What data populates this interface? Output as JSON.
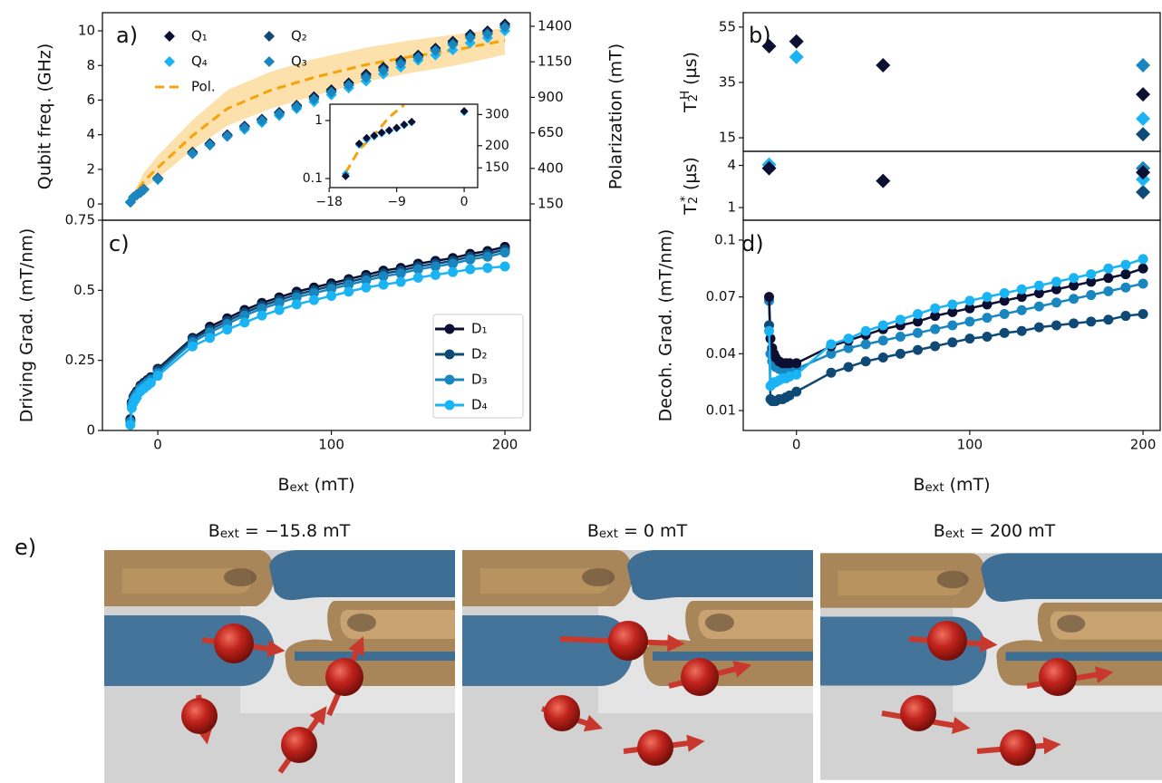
{
  "chart_data": [
    {
      "type": "scatter",
      "panel_label": "a)",
      "ylabel": "Qubit freq. (GHz)",
      "y2label": "Polarization (mT)",
      "xlim": [
        -31.9,
        214.6
      ],
      "ylim": [
        -0.94,
        11.05
      ],
      "yticks": [
        0,
        2,
        4,
        6,
        8,
        10
      ],
      "y2lim": [
        35.2,
        1495.7
      ],
      "y2ticks": [
        150,
        400,
        650,
        900,
        1150,
        1400
      ],
      "legend": "upper left",
      "legend_columns": 2,
      "x": [
        -15.8,
        -14,
        -12,
        -10,
        -8,
        0,
        20,
        30,
        40,
        50,
        60,
        70,
        80,
        90,
        100,
        110,
        120,
        130,
        140,
        150,
        160,
        170,
        180,
        190,
        200
      ],
      "series": [
        {
          "name": "Q₁",
          "color": "#0b1033",
          "marker": "diamond",
          "values": [
            0.11,
            0.4,
            0.55,
            0.68,
            0.85,
            1.5,
            3.0,
            3.5,
            4.0,
            4.5,
            4.9,
            5.3,
            5.7,
            6.2,
            6.6,
            7.0,
            7.5,
            7.9,
            8.3,
            8.6,
            9.0,
            9.4,
            9.8,
            10.0,
            10.4
          ]
        },
        {
          "name": "Q₂",
          "color": "#0e4a75",
          "marker": "diamond",
          "values": [
            0.1,
            0.38,
            0.53,
            0.66,
            0.83,
            1.48,
            2.95,
            3.45,
            3.95,
            4.45,
            4.85,
            5.25,
            5.65,
            6.1,
            6.5,
            6.9,
            7.4,
            7.8,
            8.2,
            8.5,
            8.9,
            9.3,
            9.7,
            9.9,
            10.3
          ]
        },
        {
          "name": "Q₄",
          "color": "#1ab4f5",
          "marker": "diamond",
          "values": [
            0.12,
            0.38,
            0.53,
            0.66,
            0.83,
            1.4,
            2.9,
            3.4,
            3.9,
            4.3,
            4.7,
            5.1,
            5.5,
            5.9,
            6.3,
            6.7,
            7.1,
            7.5,
            7.9,
            8.3,
            8.6,
            8.9,
            9.3,
            9.6,
            10.0
          ]
        },
        {
          "name": "Q₃",
          "color": "#1a86c0",
          "marker": "diamond",
          "values": [
            0.1,
            0.37,
            0.52,
            0.65,
            0.82,
            1.45,
            2.9,
            3.4,
            3.9,
            4.4,
            4.8,
            5.2,
            5.6,
            6.05,
            6.45,
            6.85,
            7.3,
            7.7,
            8.1,
            8.45,
            8.85,
            9.2,
            9.6,
            9.8,
            10.2
          ]
        },
        {
          "name": "Pol.",
          "type": "line",
          "axis": "y2",
          "color": "#f5a30a",
          "linestyle": "dashed",
          "band_color": "#fbd48a",
          "x": [
            -15.8,
            -8,
            0,
            20,
            40,
            65,
            90,
            120,
            145,
            170,
            200
          ],
          "values": [
            170,
            310,
            405,
            630,
            820,
            950,
            1040,
            1130,
            1185,
            1230,
            1300
          ],
          "upper": [
            190,
            370,
            490,
            740,
            950,
            1080,
            1170,
            1250,
            1300,
            1340,
            1390
          ],
          "lower": [
            150,
            260,
            330,
            530,
            700,
            820,
            910,
            1010,
            1070,
            1120,
            1200
          ]
        }
      ]
    },
    {
      "type": "scatter",
      "xlim": [
        -17.9,
        1.8
      ],
      "xticks": [
        {
          "value": -18,
          "label": "−18"
        },
        {
          "value": -9,
          "label": "−9"
        },
        0
      ],
      "yscale": "log",
      "ylim": [
        0.0698,
        1.91
      ],
      "yticks": [
        0.1,
        1
      ],
      "y2scale": "log",
      "y2lim": [
        116,
        343
      ],
      "y2ticks": [
        150,
        200,
        300
      ],
      "x": [
        -15.8,
        -14,
        -13,
        -12,
        -11,
        -10,
        -9,
        -8,
        -7,
        0
      ],
      "series": [
        {
          "color": "#1ab4f5",
          "marker": "diamond",
          "values": [
            0.12,
            0.38,
            0.47,
            0.53,
            0.6,
            0.66,
            0.73,
            0.83,
            0.93,
            1.4
          ]
        },
        {
          "color": "#0b1033",
          "marker": "diamond",
          "values": [
            0.11,
            0.4,
            0.5,
            0.55,
            0.62,
            0.68,
            0.75,
            0.85,
            0.95,
            1.45
          ]
        },
        {
          "type": "line",
          "axis": "y2",
          "color": "#f5a30a",
          "linestyle": "dashed",
          "x": [
            -15.8,
            -14,
            -12,
            -10,
            -8
          ],
          "values": [
            141,
            190,
            230,
            290,
            340
          ]
        }
      ]
    },
    {
      "type": "scatter",
      "panel_label": "b)",
      "ylabel": {
        "base": "T",
        "sub": "2",
        "sup": "H",
        "rest": " (µs)"
      },
      "xlim": [
        -30.7,
        209.9
      ],
      "ylim": [
        10.1,
        60.2
      ],
      "yticks": [
        15,
        35,
        55
      ],
      "x": [
        -15.8,
        0,
        50,
        200
      ],
      "series": [
        {
          "color": "#0e4a75",
          "marker": "diamond",
          "values": [
            null,
            null,
            null,
            16.3
          ]
        },
        {
          "color": "#1a86c0",
          "marker": "diamond",
          "values": [
            null,
            null,
            null,
            41.2
          ]
        },
        {
          "color": "#1ab4f5",
          "marker": "diamond",
          "values": [
            null,
            44.2,
            null,
            21.9
          ]
        },
        {
          "color": "#0b1033",
          "marker": "diamond",
          "values": [
            48.1,
            49.8,
            41.2,
            30.7
          ]
        }
      ]
    },
    {
      "type": "scatter",
      "ylabel": {
        "base": "T",
        "sub": "2",
        "sup": "*",
        "rest": " (µs)"
      },
      "xlim": [
        -30.7,
        209.9
      ],
      "ylim": [
        0.1,
        5.0
      ],
      "yticks": [
        1,
        4
      ],
      "x": [
        -15.8,
        0,
        50,
        200
      ],
      "series": [
        {
          "color": "#0e4a75",
          "marker": "diamond",
          "values": [
            null,
            null,
            null,
            2.1
          ]
        },
        {
          "color": "#1a86c0",
          "marker": "diamond",
          "values": [
            null,
            null,
            null,
            3.8
          ]
        },
        {
          "color": "#1ab4f5",
          "marker": "diamond",
          "values": [
            4.06,
            null,
            null,
            3.0
          ]
        },
        {
          "color": "#0b1033",
          "marker": "diamond",
          "values": [
            3.8,
            null,
            2.9,
            3.5
          ]
        }
      ]
    },
    {
      "type": "line",
      "panel_label": "c)",
      "ylabel": "Driving Grad. (mT/nm)",
      "xlabel": {
        "base": "B",
        "sub": "ext",
        "rest": " (mT)"
      },
      "xlim": [
        -31.9,
        214.6
      ],
      "xticks": [
        0,
        100,
        200
      ],
      "ylim": [
        0,
        0.75
      ],
      "yticks": [
        0,
        0.25,
        0.5,
        0.75
      ],
      "legend": "lower right",
      "legend_frame": true,
      "x": [
        -15.8,
        -15,
        -14,
        -13,
        -12,
        -10,
        -8,
        -6,
        -4,
        0,
        20,
        30,
        40,
        50,
        60,
        70,
        80,
        90,
        100,
        110,
        120,
        130,
        140,
        150,
        160,
        170,
        180,
        190,
        200
      ],
      "series": [
        {
          "name": "D₁",
          "color": "#0b1033",
          "marker": "circle",
          "values": [
            0.04,
            0.1,
            0.12,
            0.13,
            0.14,
            0.16,
            0.17,
            0.18,
            0.19,
            0.22,
            0.33,
            0.37,
            0.4,
            0.43,
            0.455,
            0.475,
            0.495,
            0.51,
            0.525,
            0.54,
            0.555,
            0.57,
            0.58,
            0.595,
            0.605,
            0.615,
            0.63,
            0.64,
            0.655
          ]
        },
        {
          "name": "D₂",
          "color": "#0e4a75",
          "marker": "circle",
          "values": [
            0.035,
            0.095,
            0.115,
            0.125,
            0.135,
            0.155,
            0.165,
            0.175,
            0.185,
            0.215,
            0.325,
            0.36,
            0.39,
            0.42,
            0.445,
            0.465,
            0.485,
            0.5,
            0.515,
            0.53,
            0.545,
            0.56,
            0.57,
            0.585,
            0.595,
            0.605,
            0.62,
            0.63,
            0.645
          ]
        },
        {
          "name": "D₃",
          "color": "#1a86c0",
          "marker": "circle",
          "values": [
            0.03,
            0.09,
            0.11,
            0.12,
            0.13,
            0.15,
            0.16,
            0.17,
            0.18,
            0.205,
            0.315,
            0.35,
            0.38,
            0.41,
            0.435,
            0.455,
            0.475,
            0.49,
            0.505,
            0.52,
            0.535,
            0.55,
            0.56,
            0.575,
            0.585,
            0.595,
            0.61,
            0.62,
            0.635
          ]
        },
        {
          "name": "D₄",
          "color": "#1ab4f5",
          "marker": "circle",
          "values": [
            0.02,
            0.08,
            0.1,
            0.11,
            0.12,
            0.14,
            0.15,
            0.16,
            0.17,
            0.195,
            0.3,
            0.33,
            0.36,
            0.385,
            0.41,
            0.43,
            0.45,
            0.465,
            0.48,
            0.495,
            0.51,
            0.52,
            0.53,
            0.545,
            0.555,
            0.565,
            0.575,
            0.58,
            0.585
          ]
        }
      ]
    },
    {
      "type": "line",
      "panel_label": "d)",
      "ylabel": "Decoh. Grad. (mT/nm)",
      "xlabel": {
        "base": "B",
        "sub": "ext",
        "rest": " (mT)"
      },
      "xlim": [
        -30.7,
        209.9
      ],
      "xticks": [
        0,
        100,
        200
      ],
      "ylim": [
        -0.0005,
        0.1105
      ],
      "yticks": [
        0.01,
        0.04,
        0.07,
        0.1
      ],
      "x": [
        -15.8,
        -15,
        -14,
        -13,
        -12,
        -10,
        -8,
        -6,
        -4,
        0,
        20,
        30,
        40,
        50,
        60,
        70,
        80,
        90,
        100,
        110,
        120,
        130,
        140,
        150,
        160,
        170,
        180,
        190,
        200
      ],
      "series": [
        {
          "color": "#1a86c0",
          "marker": "circle",
          "values": [
            0.068,
            0.04,
            0.036,
            0.034,
            0.033,
            0.032,
            0.031,
            0.031,
            0.031,
            0.032,
            0.04,
            0.043,
            0.045,
            0.047,
            0.049,
            0.051,
            0.053,
            0.055,
            0.057,
            0.059,
            0.061,
            0.063,
            0.065,
            0.067,
            0.069,
            0.071,
            0.073,
            0.075,
            0.077
          ]
        },
        {
          "color": "#0b1033",
          "marker": "circle",
          "values": [
            0.07,
            0.048,
            0.043,
            0.04,
            0.038,
            0.036,
            0.035,
            0.035,
            0.035,
            0.035,
            0.044,
            0.047,
            0.05,
            0.053,
            0.055,
            0.057,
            0.06,
            0.062,
            0.064,
            0.066,
            0.068,
            0.07,
            0.072,
            0.074,
            0.076,
            0.078,
            0.08,
            0.082,
            0.085
          ]
        },
        {
          "color": "#0e4a75",
          "marker": "circle",
          "values": [
            0.055,
            0.016,
            0.015,
            0.015,
            0.015,
            0.016,
            0.016,
            0.017,
            0.018,
            0.02,
            0.03,
            0.033,
            0.036,
            0.038,
            0.04,
            0.042,
            0.044,
            0.046,
            0.048,
            0.049,
            0.051,
            0.052,
            0.054,
            0.055,
            0.056,
            0.057,
            0.058,
            0.06,
            0.061
          ]
        },
        {
          "color": "#1ab4f5",
          "marker": "circle",
          "values": [
            0.052,
            0.023,
            0.024,
            0.025,
            0.025,
            0.026,
            0.027,
            0.027,
            0.028,
            0.029,
            0.045,
            0.048,
            0.052,
            0.055,
            0.058,
            0.061,
            0.064,
            0.066,
            0.068,
            0.07,
            0.072,
            0.074,
            0.076,
            0.078,
            0.08,
            0.082,
            0.085,
            0.087,
            0.09
          ]
        }
      ]
    }
  ],
  "illustration": {
    "panel_label": "e)",
    "images": [
      {
        "title": {
          "base": "B",
          "sub": "ext",
          "rest": " = −15.8 mT"
        }
      },
      {
        "title": {
          "base": "B",
          "sub": "ext",
          "rest": " = 0 mT"
        }
      },
      {
        "title": {
          "base": "B",
          "sub": "ext",
          "rest": " = 200 mT"
        }
      }
    ]
  }
}
